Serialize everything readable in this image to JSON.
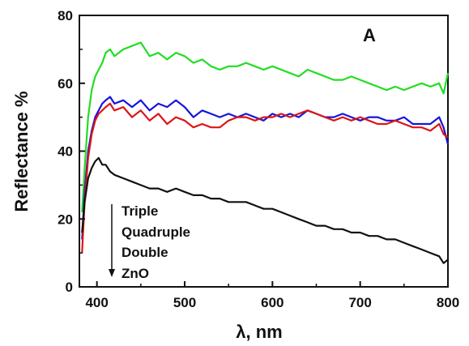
{
  "chart_data": {
    "type": "line",
    "panel_label": "A",
    "xlabel": "λ, nm",
    "ylabel": "Reflectance %",
    "xlim": [
      380,
      800
    ],
    "ylim": [
      0,
      80
    ],
    "xticks": [
      400,
      500,
      600,
      700,
      800
    ],
    "yticks": [
      0,
      20,
      40,
      60,
      80
    ],
    "legend_order_note_arrow": "down",
    "legend": [
      "Triple",
      "Quadruple",
      "Double",
      "ZnO"
    ],
    "grid": false,
    "series": [
      {
        "name": "Triple",
        "color": "#22dd22",
        "x": [
          383,
          386,
          390,
          394,
          398,
          402,
          406,
          410,
          415,
          420,
          430,
          440,
          450,
          460,
          470,
          480,
          490,
          500,
          510,
          520,
          530,
          540,
          550,
          560,
          570,
          580,
          590,
          600,
          610,
          620,
          630,
          640,
          650,
          660,
          670,
          680,
          690,
          700,
          710,
          720,
          730,
          740,
          750,
          760,
          770,
          780,
          790,
          795,
          800
        ],
        "y": [
          22,
          35,
          50,
          58,
          62,
          64,
          66,
          69,
          70,
          68,
          70,
          71,
          72,
          68,
          69,
          67,
          69,
          68,
          66,
          67,
          65,
          64,
          65,
          65,
          66,
          65,
          64,
          65,
          64,
          63,
          62,
          64,
          63,
          62,
          61,
          61,
          62,
          61,
          60,
          59,
          58,
          59,
          58,
          59,
          60,
          59,
          60,
          57,
          63
        ]
      },
      {
        "name": "Quadruple",
        "color": "#1515dd",
        "x": [
          383,
          386,
          390,
          394,
          398,
          402,
          406,
          410,
          415,
          420,
          430,
          440,
          450,
          460,
          470,
          480,
          490,
          500,
          510,
          520,
          530,
          540,
          550,
          560,
          570,
          580,
          590,
          600,
          610,
          620,
          630,
          640,
          650,
          660,
          670,
          680,
          690,
          700,
          710,
          720,
          730,
          740,
          750,
          760,
          770,
          780,
          790,
          795,
          800
        ],
        "y": [
          14,
          28,
          40,
          46,
          50,
          52,
          54,
          55,
          56,
          54,
          55,
          53,
          55,
          52,
          54,
          53,
          55,
          53,
          50,
          52,
          51,
          50,
          51,
          50,
          51,
          50,
          49,
          51,
          50,
          51,
          50,
          52,
          51,
          50,
          50,
          51,
          50,
          49,
          50,
          50,
          49,
          49,
          50,
          48,
          48,
          48,
          50,
          47,
          42
        ]
      },
      {
        "name": "Double",
        "color": "#dd1515",
        "x": [
          383,
          386,
          390,
          394,
          398,
          402,
          406,
          410,
          415,
          420,
          430,
          440,
          450,
          460,
          470,
          480,
          490,
          500,
          510,
          520,
          530,
          540,
          550,
          560,
          570,
          580,
          590,
          600,
          610,
          620,
          630,
          640,
          650,
          660,
          670,
          680,
          690,
          700,
          710,
          720,
          730,
          740,
          750,
          760,
          770,
          780,
          790,
          795,
          800
        ],
        "y": [
          10,
          25,
          38,
          45,
          49,
          51,
          52,
          53,
          54,
          52,
          53,
          50,
          52,
          49,
          51,
          48,
          50,
          49,
          47,
          48,
          47,
          47,
          49,
          50,
          50,
          49,
          50,
          50,
          51,
          50,
          51,
          52,
          51,
          50,
          49,
          50,
          49,
          50,
          49,
          48,
          48,
          49,
          48,
          47,
          47,
          46,
          48,
          45,
          44
        ]
      },
      {
        "name": "ZnO",
        "color": "#111111",
        "x": [
          383,
          386,
          390,
          394,
          398,
          402,
          406,
          410,
          415,
          420,
          430,
          440,
          450,
          460,
          470,
          480,
          490,
          500,
          510,
          520,
          530,
          540,
          550,
          560,
          570,
          580,
          590,
          600,
          610,
          620,
          630,
          640,
          650,
          660,
          670,
          680,
          690,
          700,
          710,
          720,
          730,
          740,
          750,
          760,
          770,
          780,
          790,
          795,
          800
        ],
        "y": [
          16,
          25,
          32,
          35,
          37,
          38,
          36,
          36,
          34,
          33,
          32,
          31,
          30,
          29,
          29,
          28,
          29,
          28,
          27,
          27,
          26,
          26,
          25,
          25,
          25,
          24,
          23,
          23,
          22,
          21,
          20,
          19,
          18,
          18,
          17,
          17,
          16,
          16,
          15,
          15,
          14,
          14,
          13,
          12,
          11,
          10,
          9,
          7,
          8
        ]
      }
    ]
  }
}
